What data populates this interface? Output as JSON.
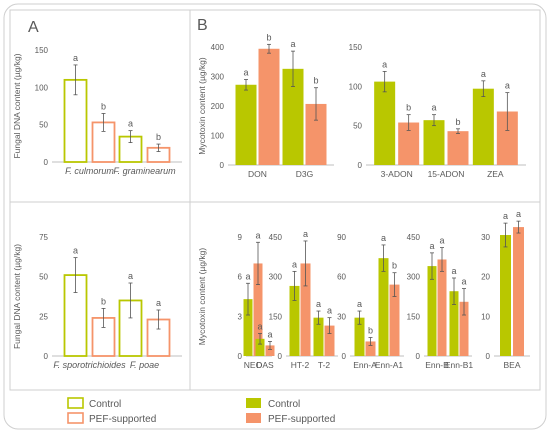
{
  "panel_labels": {
    "a": "A",
    "b": "B"
  },
  "colors": {
    "yellow": "#b9c700",
    "orange": "#f5946a",
    "axis": "#bfbfbf",
    "text": "#595959",
    "border": "#cfcfcf"
  },
  "legend": {
    "left": {
      "control": "Control",
      "pef": "PEF-supported"
    },
    "right": {
      "control": "Control",
      "pef": "PEF-supported"
    }
  },
  "chart_data": [
    {
      "id": "A1",
      "type": "bar",
      "style": "outline",
      "ylabel": "Fungal DNA content (µg/kg)",
      "ylim": [
        0,
        150
      ],
      "yticks": [
        0,
        50,
        100,
        150
      ],
      "categories": [
        "F. culmorum",
        "F. graminearum"
      ],
      "series": [
        {
          "name": "Control",
          "values": [
            110,
            34
          ],
          "errors": [
            20,
            8
          ],
          "letters": [
            "a",
            "a"
          ]
        },
        {
          "name": "PEF-supported",
          "values": [
            53,
            19
          ],
          "errors": [
            12,
            5
          ],
          "letters": [
            "b",
            "b"
          ]
        }
      ]
    },
    {
      "id": "A2",
      "type": "bar",
      "style": "outline",
      "ylabel": "Fungal DNA content (µg/kg)",
      "ylim": [
        0,
        75
      ],
      "yticks": [
        0,
        25,
        50,
        75
      ],
      "categories": [
        "F. sporotrichioides",
        "F. poae"
      ],
      "series": [
        {
          "name": "Control",
          "values": [
            51,
            35
          ],
          "errors": [
            11,
            11
          ],
          "letters": [
            "a",
            "a"
          ]
        },
        {
          "name": "PEF-supported",
          "values": [
            24,
            23
          ],
          "errors": [
            6,
            6
          ],
          "letters": [
            "b",
            "a"
          ]
        }
      ]
    },
    {
      "id": "B1",
      "type": "bar",
      "ylabel": "Mycotoxin content (µg/kg)",
      "ylim": [
        0,
        400
      ],
      "yticks": [
        0,
        100,
        200,
        300,
        400
      ],
      "categories": [
        "DON",
        "D3G"
      ],
      "series": [
        {
          "name": "Control",
          "values": [
            272,
            326
          ],
          "errors": [
            18,
            60
          ],
          "letters": [
            "a",
            "a"
          ]
        },
        {
          "name": "PEF-supported",
          "values": [
            394,
            207
          ],
          "errors": [
            15,
            55
          ],
          "letters": [
            "b",
            "b"
          ]
        }
      ]
    },
    {
      "id": "B2",
      "type": "bar",
      "ylim": [
        0,
        150
      ],
      "yticks": [
        0,
        50,
        100,
        150
      ],
      "categories": [
        "3-ADON",
        "15-ADON",
        "ZEA"
      ],
      "series": [
        {
          "name": "Control",
          "values": [
            106,
            57,
            97
          ],
          "errors": [
            13,
            7,
            10
          ],
          "letters": [
            "a",
            "a",
            "a"
          ]
        },
        {
          "name": "PEF-supported",
          "values": [
            54,
            43,
            68
          ],
          "errors": [
            10,
            3,
            24
          ],
          "letters": [
            "b",
            "b",
            "a"
          ]
        }
      ]
    },
    {
      "id": "B3",
      "type": "bar",
      "ylabel": "Mycotoxin content (µg/kg)",
      "ylim": [
        0,
        9
      ],
      "yticks": [
        0,
        3,
        6,
        9
      ],
      "categories": [
        "NEO",
        "DAS"
      ],
      "series": [
        {
          "name": "Control",
          "values": [
            4.3,
            1.3
          ],
          "errors": [
            1.2,
            0.4
          ],
          "letters": [
            "a",
            "a"
          ]
        },
        {
          "name": "PEF-supported",
          "values": [
            7.0,
            0.8
          ],
          "errors": [
            1.6,
            0.3
          ],
          "letters": [
            "a",
            "a"
          ]
        }
      ]
    },
    {
      "id": "B4",
      "type": "bar",
      "ylim": [
        0,
        450
      ],
      "yticks": [
        0,
        150,
        300,
        450
      ],
      "categories": [
        "HT-2",
        "T-2"
      ],
      "series": [
        {
          "name": "Control",
          "values": [
            265,
            145
          ],
          "errors": [
            55,
            25
          ],
          "letters": [
            "a",
            "a"
          ]
        },
        {
          "name": "PEF-supported",
          "values": [
            350,
            115
          ],
          "errors": [
            85,
            30
          ],
          "letters": [
            "a",
            "a"
          ]
        }
      ]
    },
    {
      "id": "B5",
      "type": "bar",
      "ylim": [
        0,
        90
      ],
      "yticks": [
        0,
        30,
        60,
        90
      ],
      "categories": [
        "Enn-A",
        "Enn-A1"
      ],
      "series": [
        {
          "name": "Control",
          "values": [
            29,
            74
          ],
          "errors": [
            5,
            10
          ],
          "letters": [
            "a",
            "a"
          ]
        },
        {
          "name": "PEF-supported",
          "values": [
            11,
            54
          ],
          "errors": [
            3,
            9
          ],
          "letters": [
            "b",
            "b"
          ]
        }
      ]
    },
    {
      "id": "B6",
      "type": "bar",
      "ylim": [
        0,
        450
      ],
      "yticks": [
        0,
        150,
        300,
        450
      ],
      "categories": [
        "Enn-B",
        "Enn-B1"
      ],
      "series": [
        {
          "name": "Control",
          "values": [
            340,
            245
          ],
          "errors": [
            50,
            50
          ],
          "letters": [
            "a",
            "a"
          ]
        },
        {
          "name": "PEF-supported",
          "values": [
            365,
            205
          ],
          "errors": [
            45,
            50
          ],
          "letters": [
            "a",
            "a"
          ]
        }
      ]
    },
    {
      "id": "B7",
      "type": "bar",
      "ylim": [
        0,
        30
      ],
      "yticks": [
        0,
        10,
        20,
        30
      ],
      "categories": [
        "BEA"
      ],
      "series": [
        {
          "name": "Control",
          "values": [
            30.5
          ],
          "errors": [
            3
          ],
          "letters": [
            "a"
          ]
        },
        {
          "name": "PEF-supported",
          "values": [
            32.5
          ],
          "errors": [
            1.5
          ],
          "letters": [
            "a"
          ]
        }
      ]
    }
  ]
}
